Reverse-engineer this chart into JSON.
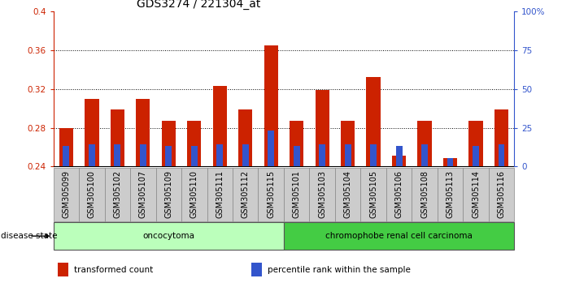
{
  "title": "GDS3274 / 221304_at",
  "samples": [
    "GSM305099",
    "GSM305100",
    "GSM305102",
    "GSM305107",
    "GSM305109",
    "GSM305110",
    "GSM305111",
    "GSM305112",
    "GSM305115",
    "GSM305101",
    "GSM305103",
    "GSM305104",
    "GSM305105",
    "GSM305106",
    "GSM305108",
    "GSM305113",
    "GSM305114",
    "GSM305116"
  ],
  "transformed_count": [
    0.28,
    0.31,
    0.299,
    0.31,
    0.287,
    0.287,
    0.323,
    0.299,
    0.365,
    0.287,
    0.319,
    0.287,
    0.332,
    0.251,
    0.287,
    0.249,
    0.287,
    0.299
  ],
  "percentile_rank": [
    0.2615,
    0.2625,
    0.2625,
    0.2625,
    0.2615,
    0.2615,
    0.2625,
    0.2625,
    0.277,
    0.2615,
    0.2625,
    0.2625,
    0.2625,
    0.2615,
    0.2625,
    0.249,
    0.2615,
    0.2625
  ],
  "ymin": 0.24,
  "ymax": 0.4,
  "yticks": [
    0.24,
    0.28,
    0.32,
    0.36,
    0.4
  ],
  "right_yticks_pct": [
    0,
    25,
    50,
    75,
    100
  ],
  "bar_color": "#cc2200",
  "percentile_color": "#3355cc",
  "groups": [
    {
      "label": "oncocytoma",
      "start": 0,
      "end": 9,
      "color": "#bbffbb"
    },
    {
      "label": "chromophobe renal cell carcinoma",
      "start": 9,
      "end": 18,
      "color": "#44cc44"
    }
  ],
  "disease_state_label": "disease state",
  "legend_items": [
    {
      "label": "transformed count",
      "color": "#cc2200"
    },
    {
      "label": "percentile rank within the sample",
      "color": "#3355cc"
    }
  ],
  "title_fontsize": 10,
  "tick_fontsize": 7,
  "bar_width": 0.55,
  "n_oncocytoma": 9
}
